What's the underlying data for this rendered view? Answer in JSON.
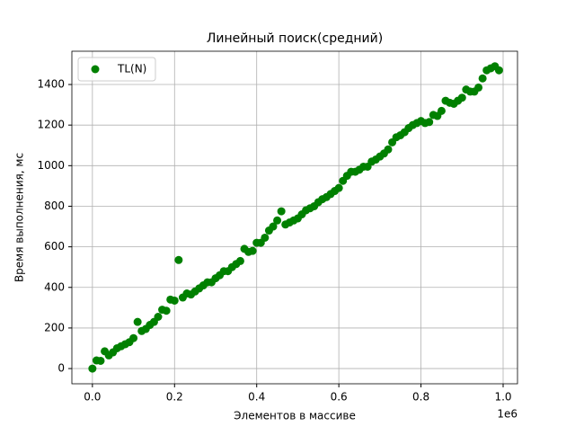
{
  "chart_data": {
    "type": "scatter",
    "title": "Линейный поиск(средний)",
    "x_label": "Элементов в массиве",
    "y_label": "Время выполнения, мс",
    "x_offset_label": "1e6",
    "series": [
      {
        "name": "TL(N)",
        "color": "#008000",
        "x": [
          0,
          10000,
          20000,
          30000,
          40000,
          50000,
          60000,
          70000,
          80000,
          90000,
          100000,
          110000,
          120000,
          130000,
          140000,
          150000,
          160000,
          170000,
          180000,
          190000,
          200000,
          210000,
          220000,
          230000,
          240000,
          250000,
          260000,
          270000,
          280000,
          290000,
          300000,
          310000,
          320000,
          330000,
          340000,
          350000,
          360000,
          370000,
          380000,
          390000,
          400000,
          410000,
          420000,
          430000,
          440000,
          450000,
          460000,
          470000,
          480000,
          490000,
          500000,
          510000,
          520000,
          530000,
          540000,
          550000,
          560000,
          570000,
          580000,
          590000,
          600000,
          610000,
          620000,
          630000,
          640000,
          650000,
          660000,
          670000,
          680000,
          690000,
          700000,
          710000,
          720000,
          730000,
          740000,
          750000,
          760000,
          770000,
          780000,
          790000,
          800000,
          810000,
          820000,
          830000,
          840000,
          850000,
          860000,
          870000,
          880000,
          890000,
          900000,
          910000,
          920000,
          930000,
          940000,
          950000,
          960000,
          970000,
          980000,
          990000
        ],
        "values": [
          0,
          40,
          38,
          85,
          65,
          80,
          100,
          110,
          120,
          130,
          150,
          230,
          185,
          195,
          215,
          230,
          255,
          290,
          285,
          340,
          335,
          535,
          350,
          370,
          365,
          380,
          395,
          410,
          425,
          425,
          445,
          460,
          480,
          480,
          500,
          515,
          530,
          590,
          575,
          580,
          620,
          620,
          645,
          680,
          700,
          730,
          775,
          710,
          720,
          730,
          740,
          760,
          780,
          790,
          800,
          820,
          835,
          845,
          860,
          875,
          890,
          925,
          950,
          970,
          970,
          980,
          995,
          995,
          1020,
          1030,
          1045,
          1060,
          1080,
          1115,
          1140,
          1150,
          1165,
          1185,
          1200,
          1210,
          1220,
          1210,
          1215,
          1250,
          1245,
          1270,
          1320,
          1310,
          1305,
          1320,
          1335,
          1375,
          1365,
          1365,
          1385,
          1430,
          1470,
          1480,
          1490,
          1470
        ]
      }
    ],
    "xlim": [
      -50000,
      1035000
    ],
    "xticks": [
      {
        "value": 0,
        "label": "0.0"
      },
      {
        "value": 200000,
        "label": "0.2"
      },
      {
        "value": 400000,
        "label": "0.4"
      },
      {
        "value": 600000,
        "label": "0.6"
      },
      {
        "value": 800000,
        "label": "0.8"
      },
      {
        "value": 1000000,
        "label": "1.0"
      }
    ],
    "ylim": [
      -75,
      1564
    ],
    "yticks": [
      0,
      200,
      400,
      600,
      800,
      1000,
      1200,
      1400
    ],
    "grid": true,
    "legend": "upper-left"
  }
}
